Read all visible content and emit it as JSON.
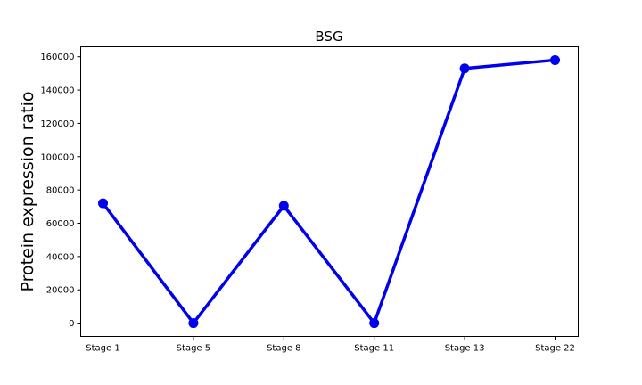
{
  "chart_data": {
    "type": "line",
    "title": "BSG",
    "xlabel": "",
    "ylabel": "Protein expression ratio",
    "categories": [
      "Stage 1",
      "Stage 5",
      "Stage 8",
      "Stage 11",
      "Stage 13",
      "Stage 22"
    ],
    "series": [
      {
        "values": [
          72000,
          0,
          70500,
          0,
          153000,
          158000
        ],
        "color": "#0000ee"
      }
    ],
    "ylim": [
      -8000,
      166000
    ],
    "yticks": [
      0,
      20000,
      40000,
      60000,
      80000,
      100000,
      120000,
      140000,
      160000
    ],
    "grid": false,
    "legend": "none"
  }
}
